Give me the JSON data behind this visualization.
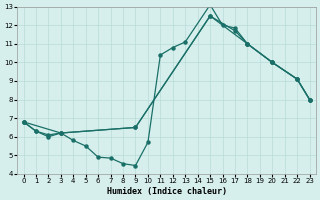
{
  "xlabel": "Humidex (Indice chaleur)",
  "bg_color": "#d6efec",
  "grid_color": "#b8dcd8",
  "line_color": "#1a7068",
  "xlim": [
    -0.5,
    23.5
  ],
  "ylim": [
    4,
    13
  ],
  "xticks": [
    0,
    1,
    2,
    3,
    4,
    5,
    6,
    7,
    8,
    9,
    10,
    11,
    12,
    13,
    14,
    15,
    16,
    17,
    18,
    19,
    20,
    21,
    22,
    23
  ],
  "yticks": [
    4,
    5,
    6,
    7,
    8,
    9,
    10,
    11,
    12,
    13
  ],
  "curve1_x": [
    0,
    1,
    2,
    3,
    4,
    5,
    6,
    7,
    8,
    9,
    10,
    11,
    12,
    13,
    15,
    16,
    17,
    18,
    20,
    22,
    23
  ],
  "curve1_y": [
    6.8,
    6.3,
    6.0,
    6.2,
    5.8,
    5.5,
    4.9,
    4.85,
    4.55,
    4.45,
    5.7,
    10.4,
    10.8,
    11.1,
    13.1,
    12.0,
    11.85,
    11.0,
    10.0,
    9.1,
    8.0
  ],
  "curve2_x": [
    0,
    1,
    2,
    3,
    9,
    15,
    17,
    18,
    20,
    22,
    23
  ],
  "curve2_y": [
    6.8,
    6.3,
    6.1,
    6.2,
    6.5,
    12.5,
    11.7,
    11.0,
    10.0,
    9.1,
    8.0
  ],
  "curve3_x": [
    0,
    3,
    9,
    15,
    18,
    20,
    22,
    23
  ],
  "curve3_y": [
    6.8,
    6.2,
    6.5,
    12.5,
    11.0,
    10.0,
    9.1,
    8.0
  ]
}
